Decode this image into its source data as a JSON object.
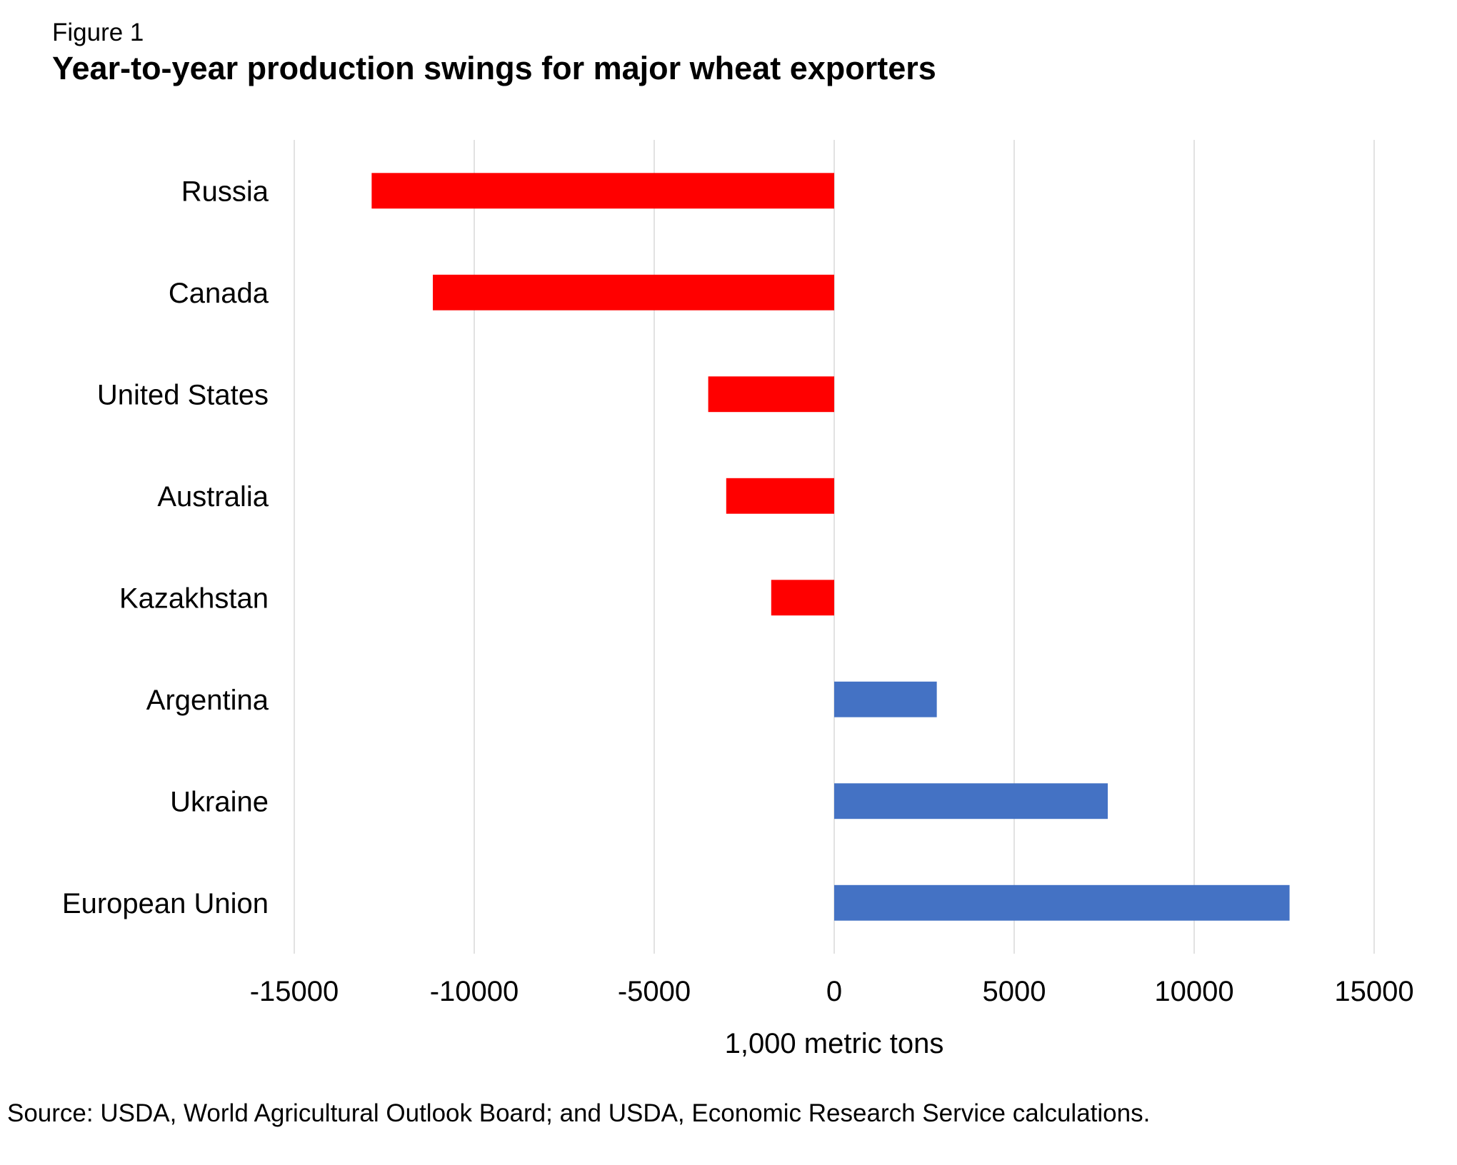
{
  "figure_label": "Figure 1",
  "title": "Year-to-year production swings for major wheat exporters",
  "source": "Source: USDA, World Agricultural Outlook Board; and USDA, Economic Research Service calculations.",
  "chart_data": {
    "type": "bar",
    "orientation": "horizontal",
    "title": "Year-to-year production swings for major wheat exporters",
    "xlabel": "1,000 metric tons",
    "ylabel": "",
    "categories": [
      "Russia",
      "Canada",
      "United States",
      "Australia",
      "Kazakhstan",
      "Argentina",
      "Ukraine",
      "European Union"
    ],
    "values": [
      -12850,
      -11150,
      -3500,
      -3000,
      -1750,
      2850,
      7600,
      12650
    ],
    "xlim": [
      -15000,
      15000
    ],
    "xticks": [
      -15000,
      -10000,
      -5000,
      0,
      5000,
      10000,
      15000
    ],
    "xtick_labels": [
      "-15000",
      "-10000",
      "-5000",
      "0",
      "5000",
      "10000",
      "15000"
    ],
    "grid": "vertical",
    "legend": "none",
    "colors": {
      "negative": "#ff0000",
      "positive": "#4472c4",
      "grid": "#d9d9d9"
    }
  }
}
